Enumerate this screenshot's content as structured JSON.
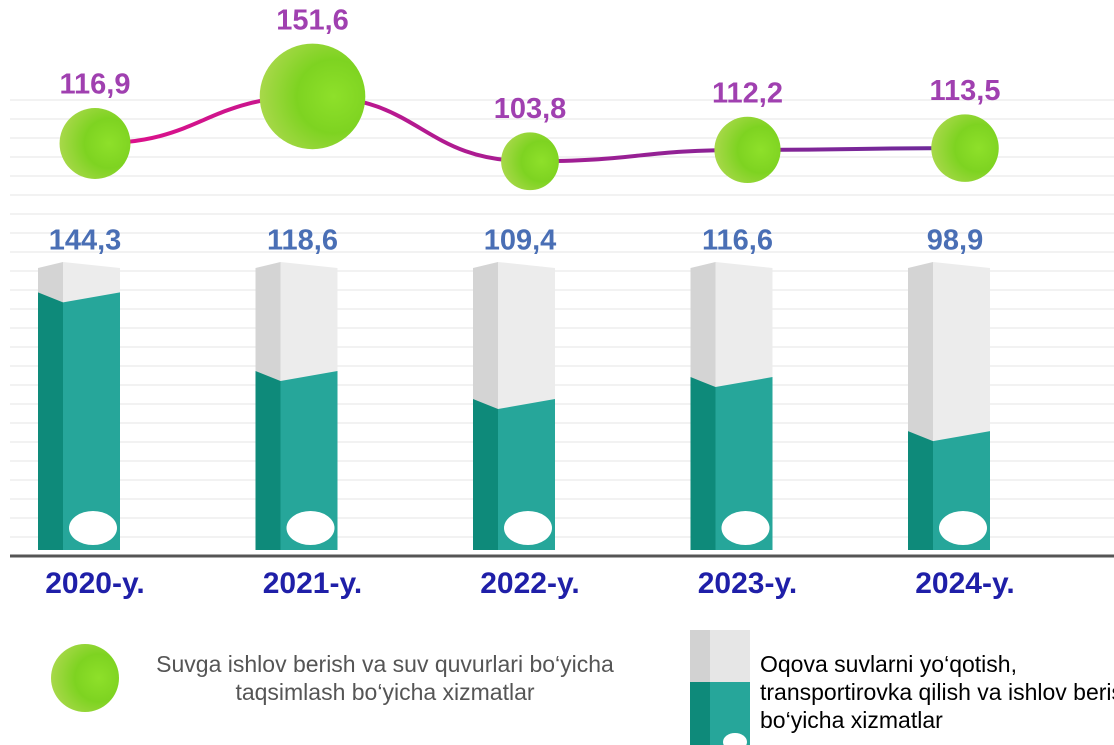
{
  "chart_data": {
    "type": "bar",
    "categories": [
      "2020-y.",
      "2021-y.",
      "2022-y.",
      "2023-y.",
      "2024-y."
    ],
    "ylim": [
      60,
      150
    ],
    "y2lim": [
      90,
      160
    ],
    "series": [
      {
        "name": "Suvga ishlov berish va suv quvurlari bo‘yicha taqsimlash bo‘yicha xizmatlar",
        "type": "line",
        "axis": "y2",
        "color": "#7ed321",
        "values": [
          116.9,
          151.6,
          103.8,
          112.2,
          113.5
        ],
        "value_labels": [
          "116,9",
          "151,6",
          "103,8",
          "112,2",
          "113,5"
        ]
      },
      {
        "name": "Oqova suvlarni yo‘qotish, transportirovka qilish va ishlov berish bo‘yicha xizmatlar",
        "type": "bar",
        "color": "#26a69a",
        "values": [
          144.3,
          118.6,
          109.4,
          116.6,
          98.9
        ],
        "value_labels": [
          "144,3",
          "118,6",
          "109,4",
          "116,6",
          "98,9"
        ]
      }
    ]
  }
}
